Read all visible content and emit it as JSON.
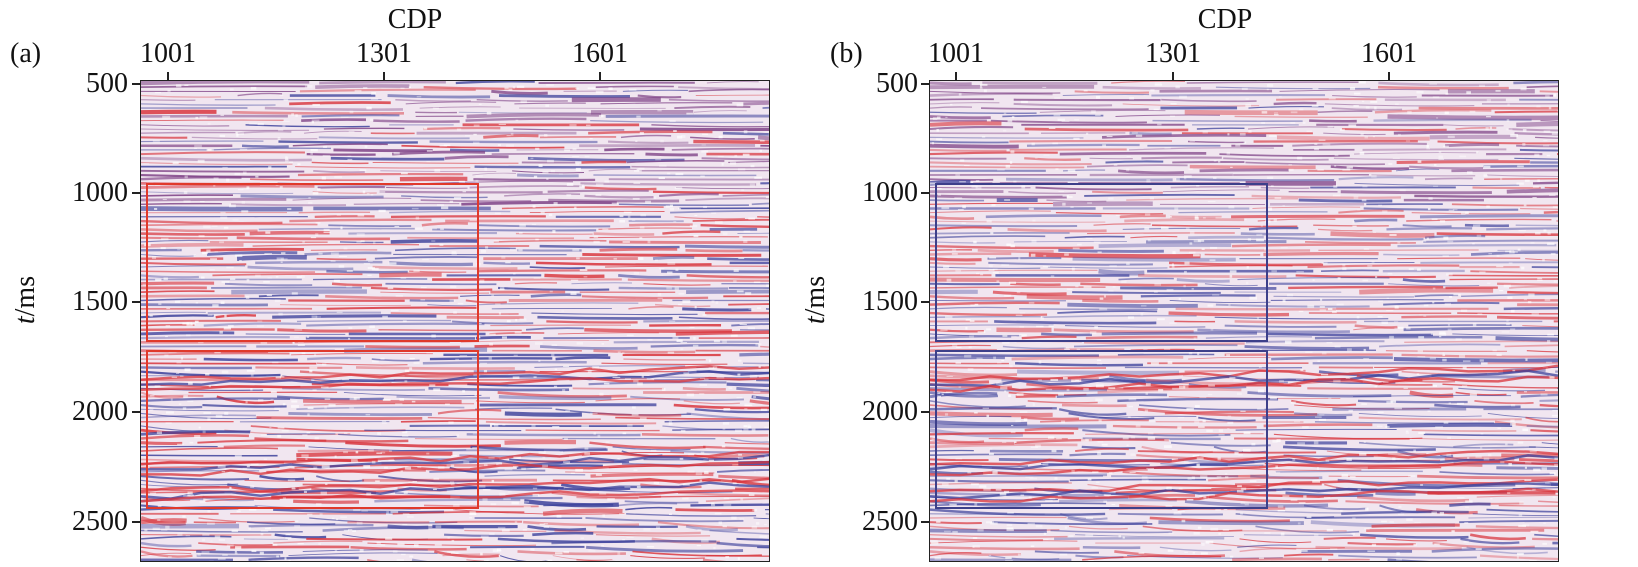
{
  "panels": [
    {
      "label": "(a)",
      "x_axis_title": "CDP",
      "x_ticks": [
        "1001",
        "1301",
        "1601"
      ],
      "y_axis_title_italic": "t",
      "y_axis_title_rest": "/ms",
      "y_ticks": [
        "500",
        "1000",
        "1500",
        "2000",
        "2500"
      ],
      "box_color": "#e0392b"
    },
    {
      "label": "(b)",
      "x_axis_title": "CDP",
      "x_ticks": [
        "1001",
        "1301",
        "1601"
      ],
      "y_axis_title_italic": "t",
      "y_axis_title_rest": "/ms",
      "y_ticks": [
        "500",
        "1000",
        "1500",
        "2000",
        "2500"
      ],
      "box_color": "#3d3f8a"
    }
  ],
  "colors": {
    "seismic_red": "#d8323a",
    "seismic_blue": "#3a3f9a",
    "seismic_purple": "#7a3c82",
    "background": "#f1e6f0"
  }
}
